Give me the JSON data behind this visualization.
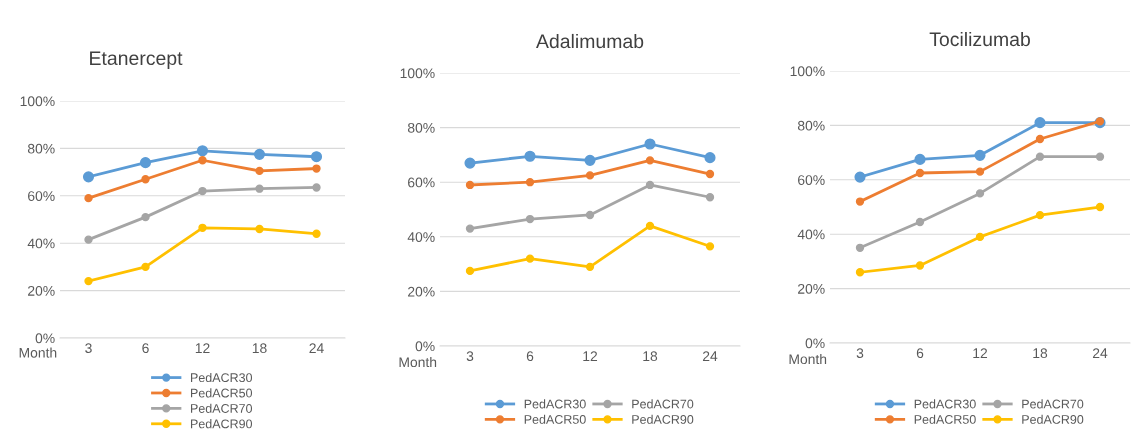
{
  "chart_data": [
    {
      "type": "line",
      "title": "Etanercept",
      "xlabel": "Month",
      "categories": [
        "3",
        "6",
        "12",
        "18",
        "24"
      ],
      "marker": "circle",
      "grid": "y",
      "legend": "bottom",
      "ylim": [
        0,
        100
      ],
      "yticks": [
        {
          "value": 0,
          "label": "0%"
        },
        {
          "value": 20,
          "label": "20%"
        },
        {
          "value": 40,
          "label": "40%"
        },
        {
          "value": 60,
          "label": "60%"
        },
        {
          "value": 80,
          "label": "80%"
        },
        {
          "value": 100,
          "label": "100%"
        }
      ],
      "series": [
        {
          "name": "PedACR30",
          "color": "#5b9bd5",
          "values": [
            68,
            74,
            79,
            77.5,
            76.5
          ]
        },
        {
          "name": "PedACR50",
          "color": "#ed7d31",
          "values": [
            59,
            67,
            75,
            70.5,
            71.5
          ]
        },
        {
          "name": "PedACR70",
          "color": "#a5a5a5",
          "values": [
            41.5,
            51,
            62,
            63,
            63.5
          ]
        },
        {
          "name": "PedACR90",
          "color": "#ffc000",
          "values": [
            24,
            30,
            46.5,
            46,
            44
          ]
        }
      ]
    },
    {
      "type": "line",
      "title": "Adalimumab",
      "xlabel": "Month",
      "categories": [
        "3",
        "6",
        "12",
        "18",
        "24"
      ],
      "marker": "circle",
      "grid": "y",
      "legend": "bottom",
      "ylim": [
        0,
        100
      ],
      "yticks": [
        {
          "value": 0,
          "label": "0%"
        },
        {
          "value": 20,
          "label": "20%"
        },
        {
          "value": 40,
          "label": "40%"
        },
        {
          "value": 60,
          "label": "60%"
        },
        {
          "value": 80,
          "label": "80%"
        },
        {
          "value": 100,
          "label": "100%"
        }
      ],
      "series": [
        {
          "name": "PedACR30",
          "color": "#5b9bd5",
          "values": [
            67,
            69.5,
            68,
            74,
            69
          ]
        },
        {
          "name": "PedACR50",
          "color": "#ed7d31",
          "values": [
            59,
            60,
            62.5,
            68,
            63
          ]
        },
        {
          "name": "PedACR70",
          "color": "#a5a5a5",
          "values": [
            43,
            46.5,
            48,
            59,
            54.5
          ]
        },
        {
          "name": "PedACR90",
          "color": "#ffc000",
          "values": [
            27.5,
            32,
            29,
            44,
            36.5
          ]
        }
      ]
    },
    {
      "type": "line",
      "title": "Tocilizumab",
      "xlabel": "Month",
      "categories": [
        "3",
        "6",
        "12",
        "18",
        "24"
      ],
      "marker": "circle",
      "grid": "y",
      "legend": "bottom",
      "ylim": [
        0,
        100
      ],
      "yticks": [
        {
          "value": 0,
          "label": "0%"
        },
        {
          "value": 20,
          "label": "20%"
        },
        {
          "value": 40,
          "label": "40%"
        },
        {
          "value": 60,
          "label": "60%"
        },
        {
          "value": 80,
          "label": "80%"
        },
        {
          "value": 100,
          "label": "100%"
        }
      ],
      "series": [
        {
          "name": "PedACR30",
          "color": "#5b9bd5",
          "values": [
            61,
            67.5,
            69,
            81,
            81
          ]
        },
        {
          "name": "PedACR50",
          "color": "#ed7d31",
          "values": [
            52,
            62.5,
            63,
            75,
            81.5
          ]
        },
        {
          "name": "PedACR70",
          "color": "#a5a5a5",
          "values": [
            35,
            44.5,
            55,
            68.5,
            68.5
          ]
        },
        {
          "name": "PedACR90",
          "color": "#ffc000",
          "values": [
            26,
            28.5,
            39,
            47,
            50
          ]
        }
      ]
    }
  ]
}
